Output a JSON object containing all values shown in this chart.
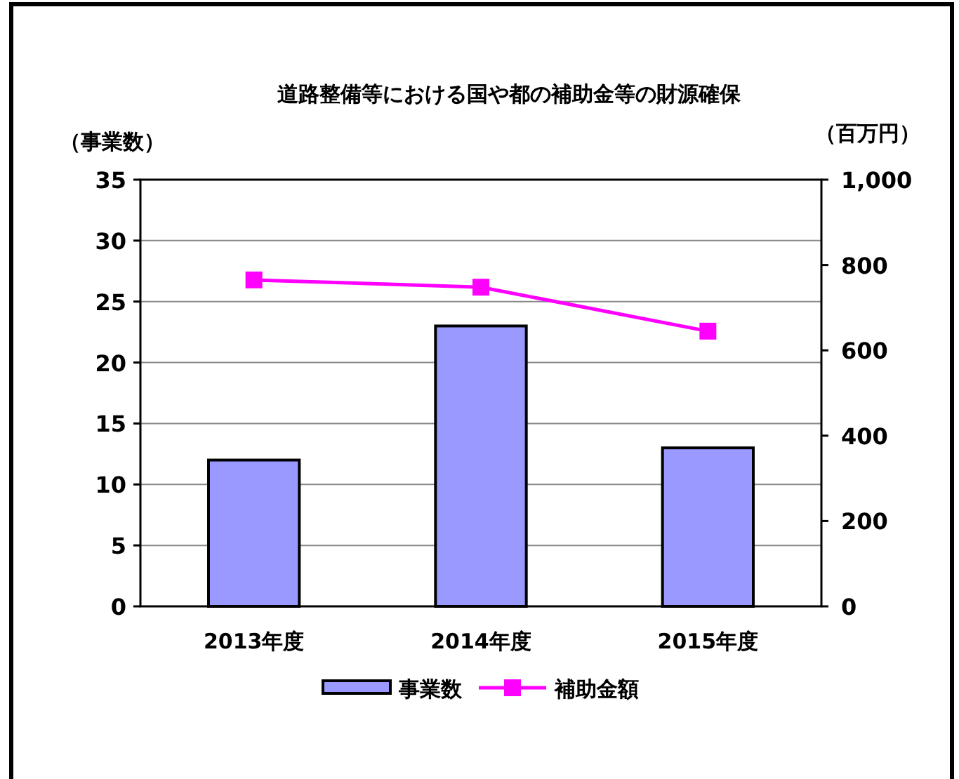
{
  "chart_data": {
    "type": "bar",
    "title": "道路整備等における国や都の補助金等の財源確保",
    "ylabel": "（事業数）",
    "y2label": "（百万円）",
    "categories": [
      "2013年度",
      "2014年度",
      "2015年度"
    ],
    "series": [
      {
        "name": "事業数",
        "color": "#9999ff",
        "values": [
          12,
          23,
          13
        ]
      },
      {
        "name": "補助金額",
        "type": "line",
        "axis": "y2",
        "color": "#ff00ff",
        "marker": "square",
        "values": [
          765,
          748,
          645
        ]
      }
    ],
    "ylim": [
      0,
      35
    ],
    "yticks": [
      0,
      5,
      10,
      15,
      20,
      25,
      30,
      35
    ],
    "y2lim": [
      0,
      1000
    ],
    "y2ticks": [
      0,
      200,
      400,
      600,
      800,
      {
        "value": 1000,
        "label": "1,000"
      }
    ],
    "grid": "y",
    "legend": "bottom"
  }
}
